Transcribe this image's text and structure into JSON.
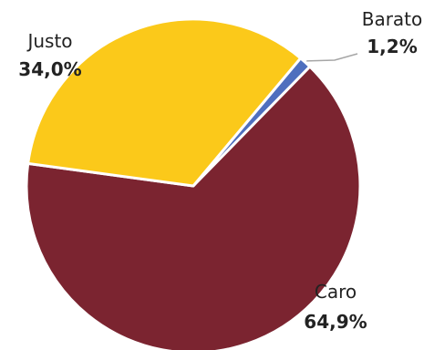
{
  "chart_data": {
    "type": "pie",
    "slices": [
      {
        "label": "Barato",
        "value": 1.2,
        "value_label": "1,2%",
        "color": "#4f6fbe"
      },
      {
        "label": "Caro",
        "value": 64.9,
        "value_label": "64,9%",
        "color": "#7b2430"
      },
      {
        "label": "Justo",
        "value": 34.0,
        "value_label": "34,0%",
        "color": "#fbc91a"
      }
    ],
    "title": "",
    "legend": "none",
    "label_style": "category-and-percent"
  }
}
